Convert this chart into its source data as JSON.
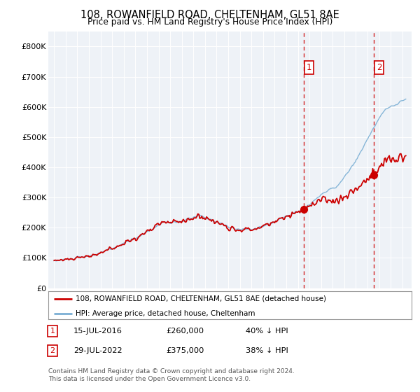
{
  "title": "108, ROWANFIELD ROAD, CHELTENHAM, GL51 8AE",
  "subtitle": "Price paid vs. HM Land Registry's House Price Index (HPI)",
  "property_label": "108, ROWANFIELD ROAD, CHELTENHAM, GL51 8AE (detached house)",
  "hpi_label": "HPI: Average price, detached house, Cheltenham",
  "sale1_date": "15-JUL-2016",
  "sale1_price": "£260,000",
  "sale1_pct": "40% ↓ HPI",
  "sale2_date": "29-JUL-2022",
  "sale2_price": "£375,000",
  "sale2_pct": "38% ↓ HPI",
  "footer": "Contains HM Land Registry data © Crown copyright and database right 2024.\nThis data is licensed under the Open Government Licence v3.0.",
  "property_color": "#cc0000",
  "hpi_color": "#7bafd4",
  "sale1_x": 2016.54,
  "sale2_x": 2022.57,
  "sale1_val": 260000,
  "sale2_val": 375000,
  "ylim": [
    0,
    850000
  ],
  "yticks": [
    0,
    100000,
    200000,
    300000,
    400000,
    500000,
    600000,
    700000,
    800000
  ],
  "xlim_start": 1994.5,
  "xlim_end": 2025.8,
  "background_color": "#eef2f7"
}
